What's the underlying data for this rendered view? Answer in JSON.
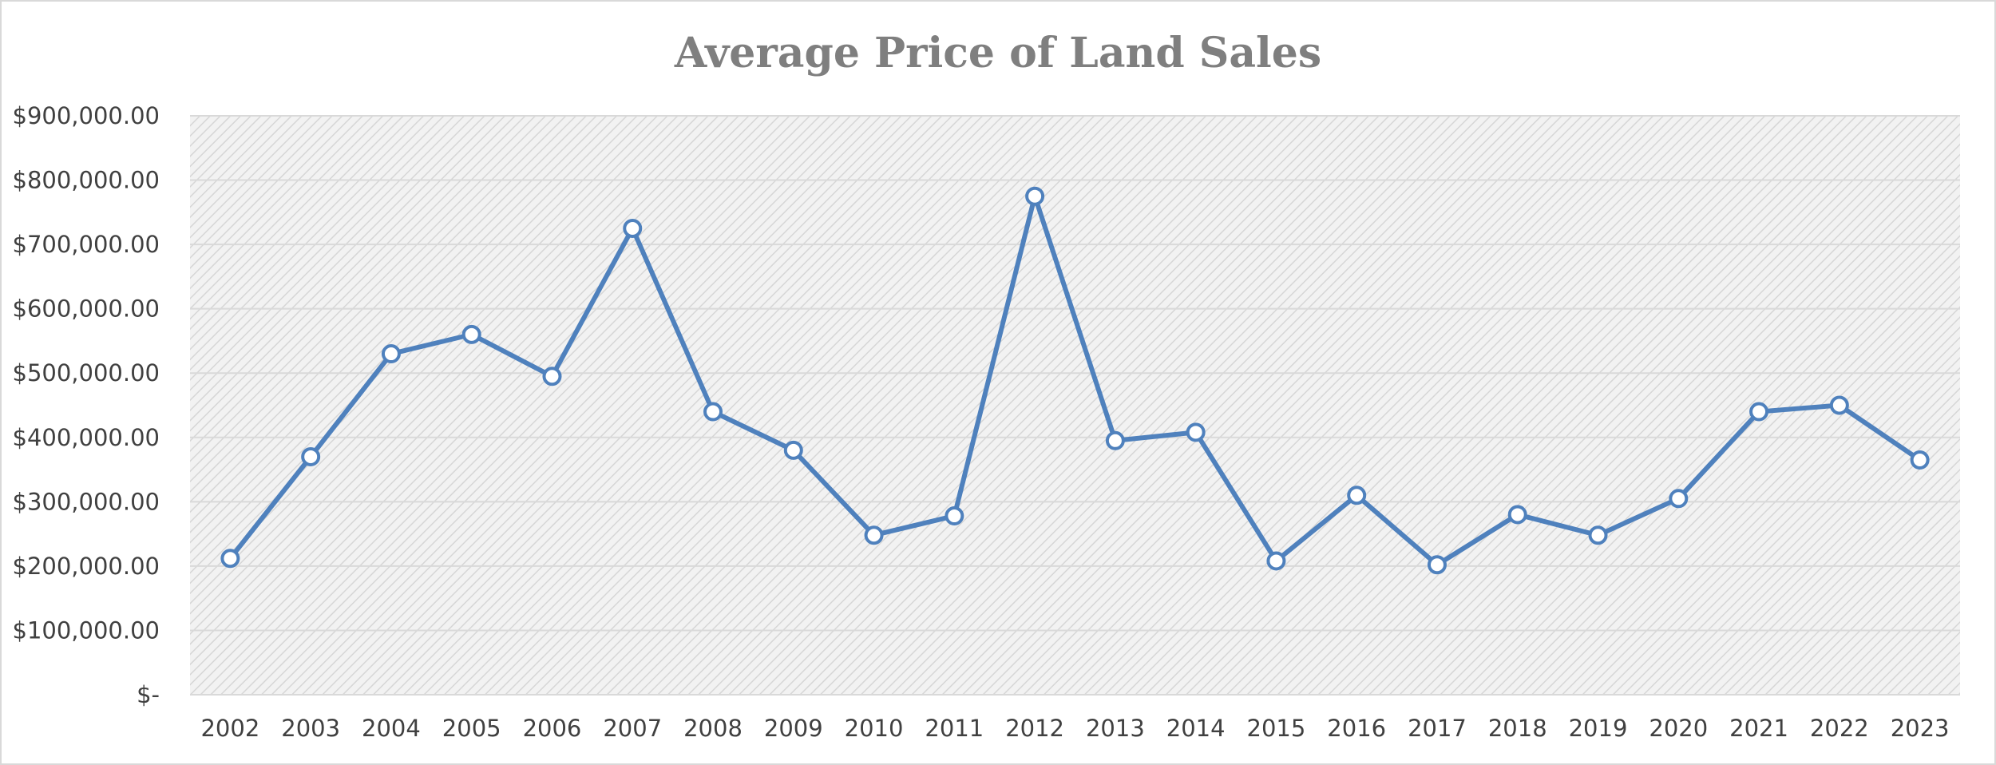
{
  "chart_data": {
    "type": "line",
    "title": "Average Price of Land Sales",
    "xlabel": "",
    "ylabel": "",
    "categories": [
      "2002",
      "2003",
      "2004",
      "2005",
      "2006",
      "2007",
      "2008",
      "2009",
      "2010",
      "2011",
      "2012",
      "2013",
      "2014",
      "2015",
      "2016",
      "2017",
      "2018",
      "2019",
      "2020",
      "2021",
      "2022",
      "2023"
    ],
    "series": [
      {
        "name": "Average Price",
        "values": [
          212000,
          370000,
          530000,
          560000,
          495000,
          725000,
          440000,
          380000,
          248000,
          278000,
          775000,
          395000,
          408000,
          208000,
          310000,
          202000,
          280000,
          248000,
          305000,
          440000,
          450000,
          365000
        ]
      }
    ],
    "ylim": [
      0,
      900000
    ],
    "yticks": [
      0,
      100000,
      200000,
      300000,
      400000,
      500000,
      600000,
      700000,
      800000,
      900000
    ],
    "ytick_labels": [
      "$-",
      "$100,000.00",
      "$200,000.00",
      "$300,000.00",
      "$400,000.00",
      "$500,000.00",
      "$600,000.00",
      "$700,000.00",
      "$800,000.00",
      "$900,000.00"
    ],
    "grid": true,
    "legend": "none",
    "colors": {
      "line": "#4f81bd",
      "marker_fill": "#ffffff",
      "plot_hatch_bg": "#f2f2f2",
      "plot_hatch_line": "#d6d6d6",
      "gridline": "#d9d9d9",
      "title": "#7f7f7f",
      "tick_text": "#404040"
    }
  }
}
